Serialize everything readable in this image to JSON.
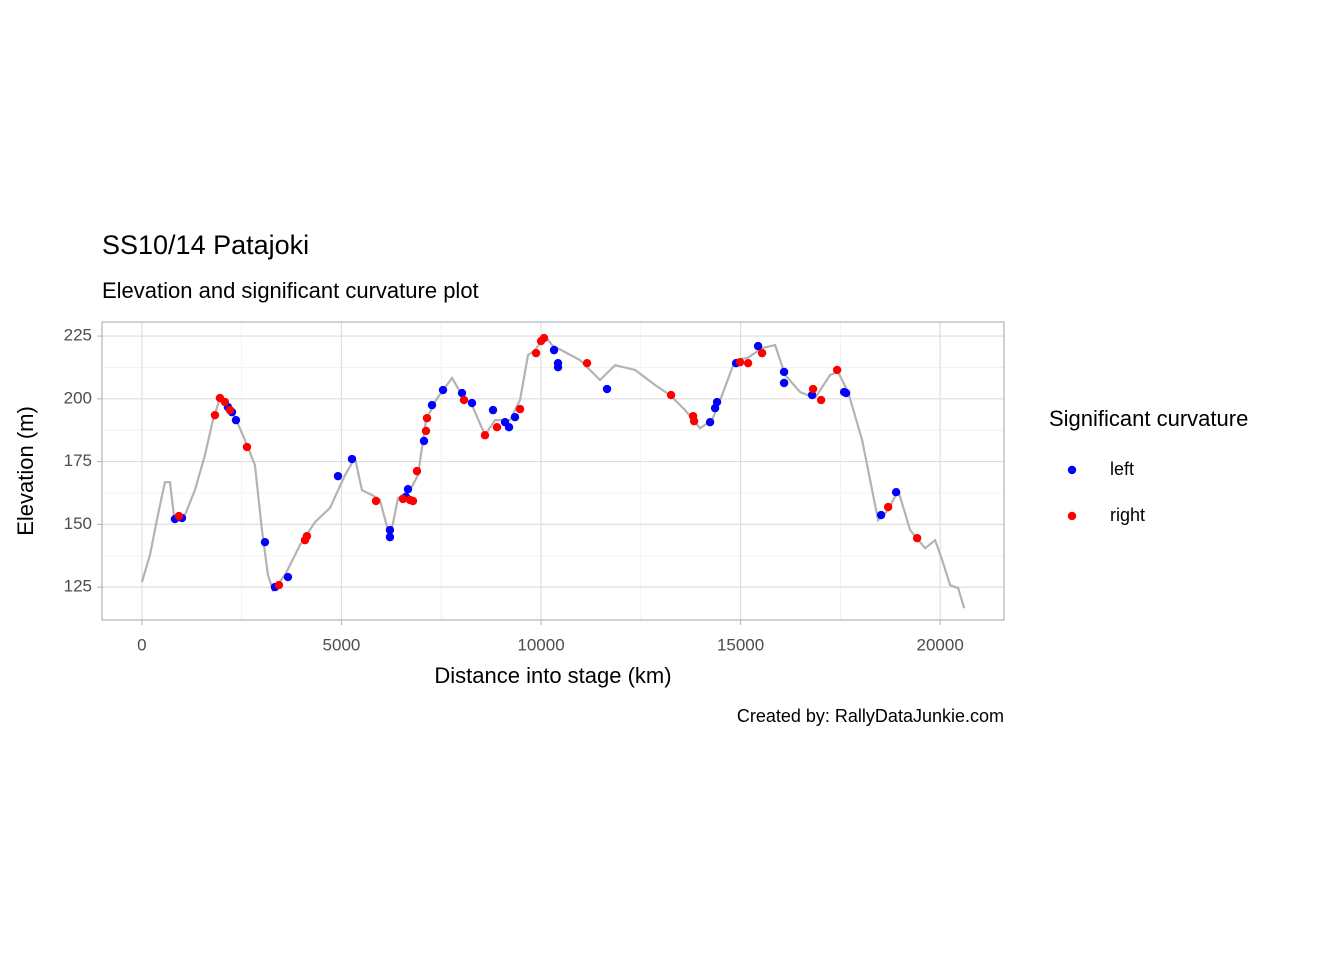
{
  "chart_data": {
    "type": "scatter",
    "title": "SS10/14 Patajoki",
    "subtitle": "Elevation and significant curvature plot",
    "xlabel": "Distance into stage (km)",
    "ylabel": "Elevation (m)",
    "caption": "Created by: RallyDataJunkie.com",
    "legend_title": "Significant curvature",
    "legend_position": "right",
    "grid": true,
    "xlim": [
      -1000,
      21600
    ],
    "ylim": [
      111.9,
      230.6
    ],
    "xticks": [
      0,
      5000,
      10000,
      15000,
      20000
    ],
    "yticks": [
      125,
      150,
      175,
      200,
      225
    ],
    "series": [
      {
        "type": "line",
        "color": "#b3b3b3",
        "x": [
          0,
          200,
          401,
          576,
          702,
          802,
          1078,
          1328,
          1579,
          1779,
          1955,
          2256,
          2581,
          2832,
          3008,
          3158,
          3283,
          3584,
          3960,
          4336,
          4712,
          5088,
          5338,
          5514,
          5764,
          5965,
          6215,
          6416,
          6717,
          6917,
          7118,
          7368,
          7769,
          8020,
          8271,
          8596,
          8847,
          9223,
          9474,
          9674,
          9850,
          10100,
          10276,
          10602,
          10977,
          11478,
          11855,
          12356,
          12857,
          13233,
          13609,
          13985,
          14286,
          14536,
          14862,
          15188,
          15539,
          15865,
          16115,
          16491,
          16867,
          17243,
          17444,
          17694,
          18045,
          18446,
          18697,
          18947,
          19248,
          19624,
          19875,
          20050,
          20251,
          20451,
          20602
        ],
        "values": [
          127,
          137.7,
          153.7,
          166.8,
          166.8,
          153.7,
          153.7,
          163.6,
          177.6,
          191.5,
          200.3,
          195.5,
          183.6,
          173.6,
          147.7,
          129.8,
          123.8,
          129.8,
          141.7,
          150.9,
          156.5,
          169.6,
          176.4,
          163.6,
          161.7,
          159.7,
          144.5,
          160.5,
          163.6,
          169.6,
          191.5,
          199.5,
          208.3,
          201.5,
          197.5,
          185.5,
          191.5,
          191.5,
          199.5,
          217.4,
          219.4,
          225,
          221.4,
          218.6,
          215.4,
          207.5,
          213.4,
          211.5,
          205.5,
          201.5,
          195.5,
          188.3,
          191.5,
          201.5,
          215.4,
          216.4,
          220.2,
          221.4,
          209.5,
          202.7,
          200.3,
          209.5,
          210.7,
          202.7,
          183.6,
          151.7,
          155.7,
          163.6,
          147.7,
          140.5,
          143.7,
          135.8,
          125.8,
          124.6,
          116.6
        ]
      },
      {
        "name": "left",
        "color": "#0000ff",
        "x": [
          827,
          1003,
          2155,
          2256,
          2356,
          3083,
          3333,
          3659,
          4912,
          5263,
          6215,
          6215,
          6616,
          6667,
          7068,
          7268,
          7544,
          8020,
          8271,
          8797,
          9098,
          9198,
          9348,
          10326,
          10426,
          10426,
          11654,
          14236,
          14361,
          14411,
          14887,
          15439,
          16090,
          16090,
          16792,
          17594,
          17644,
          18521,
          18897
        ],
        "values": [
          152.1,
          152.5,
          196.7,
          194.7,
          191.5,
          142.9,
          125,
          129,
          169.2,
          176,
          144.9,
          147.7,
          160.9,
          164,
          183.2,
          197.5,
          203.5,
          202.3,
          198.3,
          195.5,
          190.7,
          188.7,
          192.7,
          219.4,
          214.2,
          212.6,
          203.9,
          190.7,
          196.3,
          198.7,
          214.2,
          221,
          210.7,
          206.3,
          201.5,
          202.7,
          202.3,
          153.7,
          162.8
        ]
      },
      {
        "name": "right",
        "color": "#ff0000",
        "x": [
          927,
          1830,
          1955,
          2080,
          2206,
          2632,
          3434,
          4085,
          4135,
          5865,
          6541,
          6717,
          6792,
          6892,
          7118,
          7143,
          8070,
          8596,
          8897,
          9474,
          9875,
          10000,
          10075,
          11153,
          13258,
          13810,
          13835,
          14987,
          15188,
          15539,
          16817,
          17018,
          17419,
          18697,
          19424
        ],
        "values": [
          153.3,
          193.5,
          200.3,
          198.7,
          195.5,
          180.8,
          125.8,
          143.7,
          145.3,
          159.3,
          160.1,
          159.7,
          159.3,
          171.2,
          187.2,
          192.3,
          199.5,
          185.5,
          188.7,
          195.9,
          218.2,
          223,
          224.2,
          214.2,
          201.5,
          193.1,
          191.1,
          214.6,
          214.2,
          218.2,
          203.9,
          199.5,
          211.5,
          156.9,
          144.5
        ]
      }
    ]
  }
}
